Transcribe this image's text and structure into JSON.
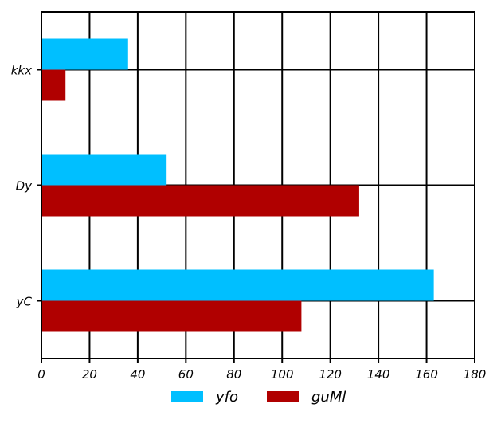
{
  "chart_data": {
    "type": "bar",
    "orientation": "horizontal",
    "categories": [
      "kkx",
      "Dy",
      "yC"
    ],
    "series": [
      {
        "name": "yfo",
        "color": "#00BFFF",
        "values": [
          36,
          52,
          163
        ]
      },
      {
        "name": "guMl",
        "color": "#B00000",
        "values": [
          10,
          132,
          108
        ]
      }
    ],
    "xlim": [
      0,
      180
    ],
    "xticks": [
      0,
      20,
      40,
      60,
      80,
      100,
      120,
      140,
      160,
      180
    ],
    "grid": true,
    "legend_position": "bottom",
    "title": "",
    "xlabel": "",
    "ylabel": ""
  }
}
